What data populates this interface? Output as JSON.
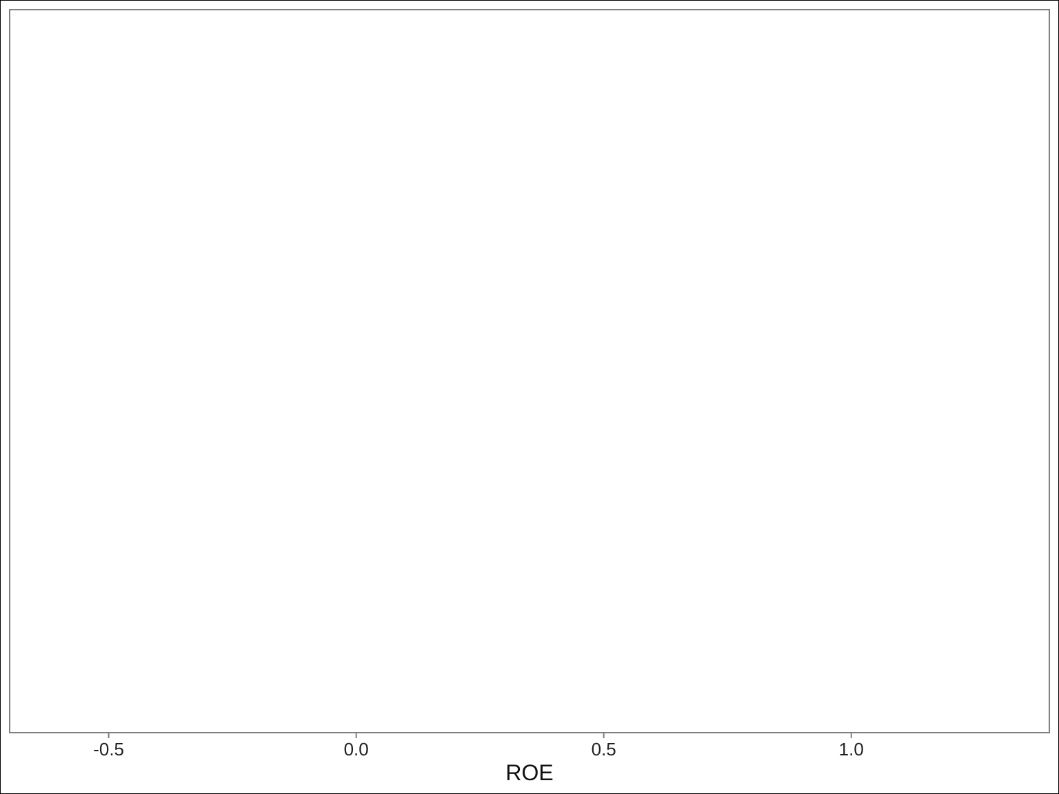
{
  "chart_data": {
    "type": "scatter",
    "title": "",
    "xlabel": "ROE",
    "ylabel": "",
    "xlim": [
      -0.7,
      1.4
    ],
    "xticks": [
      -0.5,
      0.0,
      0.5,
      1.0
    ],
    "xtick_labels": [
      "-0.5",
      "0.0",
      "0.5",
      "1.0"
    ],
    "grid": false,
    "legend": "none",
    "series": [],
    "colors": {
      "panel_border": "#7f7f7f",
      "tick": "#7f7f7f",
      "frame": "#000000",
      "background": "#ffffff"
    }
  }
}
